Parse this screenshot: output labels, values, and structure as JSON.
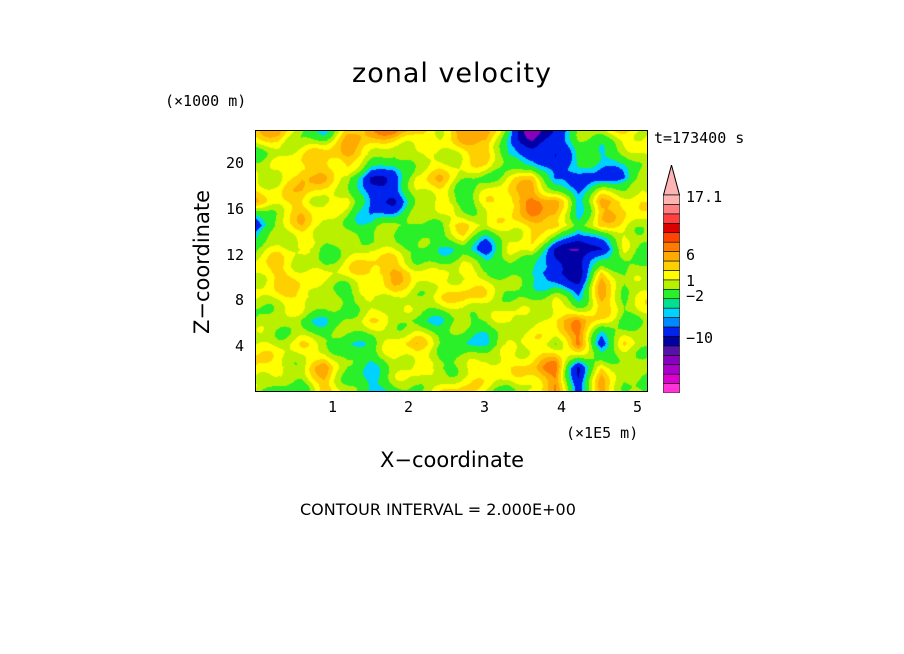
{
  "chart_data": {
    "type": "heatmap",
    "title": "zonal velocity",
    "xlabel": "X−coordinate",
    "ylabel": "Z−coordinate",
    "x_unit": "(×1E5 m)",
    "y_unit": "(×1000 m)",
    "timestamp": "t=173400 s",
    "footer": "CONTOUR INTERVAL = 2.000E+00",
    "xlim": [
      0,
      5.14
    ],
    "ylim": [
      0,
      22.8
    ],
    "x_ticks": [
      "1",
      "2",
      "3",
      "4",
      "5"
    ],
    "y_ticks": [
      "4",
      "8",
      "12",
      "16",
      "20"
    ],
    "grid": false,
    "colorbar": {
      "labels": [
        "17.1",
        "6",
        "1",
        "−2",
        "−10"
      ],
      "colors": [
        "#ff33d6",
        "#dd00cc",
        "#aa00cc",
        "#8800bb",
        "#5511aa",
        "#0000a6",
        "#0022ee",
        "#0088ff",
        "#00d2ff",
        "#00e08e",
        "#2af02a",
        "#b8f000",
        "#ffff00",
        "#ffd000",
        "#ffaa00",
        "#ff7a00",
        "#ff4400",
        "#dd0000",
        "#ff4040",
        "#ff8080",
        "#ffb4b4"
      ]
    },
    "field": {
      "description_of_values": "zonal velocity sampled on an 18 (x) × 12 (z) grid, bottom row first",
      "x_step": 0.3,
      "z_step": 2.0,
      "values": [
        [
          1,
          -1,
          0,
          3,
          1,
          -2,
          0,
          1,
          2,
          3,
          1,
          0,
          2,
          4,
          -3,
          4,
          1,
          0
        ],
        [
          3,
          2,
          1,
          4,
          0,
          -1,
          1,
          2,
          0,
          1,
          3,
          2,
          3,
          5,
          -4,
          3,
          0,
          1
        ],
        [
          2,
          1,
          2,
          1,
          -1,
          0,
          2,
          3,
          1,
          -1,
          -1,
          1,
          2,
          1,
          5,
          -3,
          2,
          1
        ],
        [
          0,
          1,
          0,
          -1,
          1,
          2,
          1,
          0,
          -1,
          1,
          0,
          2,
          1,
          3,
          4,
          2,
          0,
          1
        ],
        [
          1,
          2,
          3,
          1,
          0,
          1,
          2,
          1,
          2,
          3,
          2,
          1,
          0,
          1,
          -2,
          4,
          1,
          2
        ],
        [
          2,
          3,
          2,
          1,
          2,
          3,
          4,
          2,
          1,
          2,
          1,
          0,
          -1,
          -4,
          -5,
          3,
          0,
          1
        ],
        [
          1,
          2,
          1,
          0,
          1,
          2,
          1,
          0,
          -1,
          0,
          -3,
          1,
          2,
          -4,
          -6,
          -4,
          1,
          0
        ],
        [
          -4,
          1,
          3,
          2,
          0,
          -1,
          1,
          0,
          1,
          3,
          1,
          2,
          3,
          4,
          -1,
          3,
          2,
          1
        ],
        [
          3,
          2,
          3,
          1,
          2,
          -3,
          -4,
          1,
          2,
          -1,
          2,
          3,
          5,
          4,
          -2,
          4,
          3,
          2
        ],
        [
          2,
          1,
          4,
          3,
          1,
          -4,
          -3,
          2,
          3,
          1,
          0,
          2,
          3,
          -3,
          -2,
          -3,
          -2,
          1
        ],
        [
          0,
          1,
          2,
          3,
          4,
          2,
          0,
          1,
          1,
          2,
          4,
          -2,
          -3,
          -4,
          0,
          -1,
          0,
          2
        ],
        [
          3,
          4,
          0,
          -1,
          3,
          4,
          5,
          3,
          2,
          4,
          4,
          -1,
          -8,
          -3,
          0,
          1,
          3,
          2
        ]
      ]
    }
  }
}
